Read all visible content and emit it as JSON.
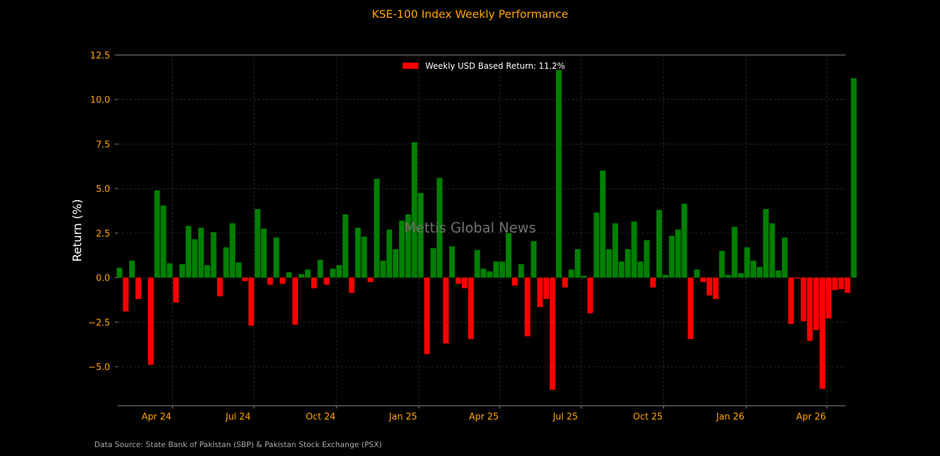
{
  "chart_data": {
    "type": "bar",
    "title": "KSE-100 Index Weekly Performance",
    "ylabel": "Return (%)",
    "xlabel": "",
    "ylim": [
      -7.2,
      12.5
    ],
    "xlim": [
      "2024-01-31",
      "2026-04-22"
    ],
    "yticks": [
      {
        "value": 12.5,
        "label": "12.5"
      },
      {
        "value": 10.0,
        "label": "10.0"
      },
      {
        "value": 7.5,
        "label": "7.5"
      },
      {
        "value": 5.0,
        "label": "5.0"
      },
      {
        "value": 2.5,
        "label": "2.5"
      },
      {
        "value": 0.0,
        "label": "0.0"
      },
      {
        "value": -2.5,
        "label": "−2.5"
      },
      {
        "value": -5.0,
        "label": "−5.0"
      }
    ],
    "xticks": [
      {
        "date": "2024-04-01",
        "label": "Apr 24"
      },
      {
        "date": "2024-07-01",
        "label": "Jul 24"
      },
      {
        "date": "2024-10-01",
        "label": "Oct 24"
      },
      {
        "date": "2025-01-01",
        "label": "Jan 25"
      },
      {
        "date": "2025-04-01",
        "label": "Apr 25"
      },
      {
        "date": "2025-07-01",
        "label": "Jul 25"
      },
      {
        "date": "2025-10-01",
        "label": "Oct 25"
      },
      {
        "date": "2026-01-01",
        "label": "Jan 26"
      },
      {
        "date": "2026-04-01",
        "label": "Apr 26"
      }
    ],
    "first_week": "2024-02-02",
    "values": [
      0.55,
      -1.9,
      0.95,
      -1.2,
      0.0,
      -4.9,
      4.9,
      4.05,
      0.8,
      -1.4,
      0.75,
      2.9,
      2.15,
      2.8,
      0.7,
      2.55,
      -1.05,
      1.7,
      3.05,
      0.85,
      -0.2,
      -2.7,
      3.85,
      2.75,
      -0.4,
      2.25,
      -0.35,
      0.3,
      -2.65,
      0.2,
      0.45,
      -0.6,
      1.0,
      -0.4,
      0.5,
      0.7,
      3.55,
      -0.85,
      2.8,
      2.3,
      -0.25,
      5.55,
      0.95,
      2.7,
      1.6,
      3.2,
      3.55,
      7.6,
      4.75,
      -4.3,
      1.65,
      5.6,
      -3.7,
      1.75,
      -0.35,
      -0.6,
      -3.45,
      1.55,
      0.5,
      0.35,
      0.9,
      0.9,
      2.5,
      -0.45,
      0.75,
      -3.3,
      2.05,
      -1.65,
      -1.2,
      -6.3,
      11.65,
      -0.55,
      0.45,
      1.6,
      0.1,
      -2.0,
      3.65,
      6.0,
      1.6,
      3.05,
      0.9,
      1.6,
      3.15,
      0.9,
      2.1,
      -0.55,
      3.8,
      0.15,
      2.35,
      2.7,
      4.15,
      -3.45,
      0.45,
      -0.25,
      -1.0,
      -1.2,
      1.5,
      0.15,
      2.85,
      0.25,
      1.7,
      0.95,
      0.6,
      3.85,
      3.05,
      0.4,
      2.25,
      -2.6,
      -0.05,
      -2.45,
      -3.55,
      -2.95,
      -6.25,
      -2.3,
      -0.7,
      -0.65,
      -0.85,
      11.2
    ],
    "legend": {
      "label": "Weekly USD Based Return: 11.2%",
      "placement": "upper center"
    },
    "grid": true
  },
  "watermark": "Mettis Global News",
  "source": "Data Source: State Bank of Pakistan (SBP) & Pakistan Stock Exchange (PSX)",
  "colors": {
    "background": "#000000",
    "positive_bar": "#008000",
    "negative_bar": "#ff0000",
    "title": "#ffa500",
    "tick_label": "#ffa500",
    "axis_label": "#ffffff",
    "grid": "#444444",
    "axis_line": "#888888",
    "legend_text": "#ffffff",
    "legend_swatch": "#ff0000",
    "watermark": "#707070",
    "source": "#aaaaaa"
  }
}
